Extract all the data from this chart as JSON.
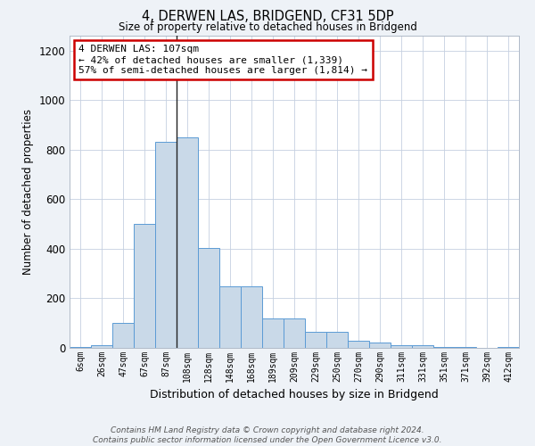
{
  "title": "4, DERWEN LAS, BRIDGEND, CF31 5DP",
  "subtitle": "Size of property relative to detached houses in Bridgend",
  "xlabel": "Distribution of detached houses by size in Bridgend",
  "ylabel": "Number of detached properties",
  "bin_labels": [
    "6sqm",
    "26sqm",
    "47sqm",
    "67sqm",
    "87sqm",
    "108sqm",
    "128sqm",
    "148sqm",
    "168sqm",
    "189sqm",
    "209sqm",
    "229sqm",
    "250sqm",
    "270sqm",
    "290sqm",
    "311sqm",
    "331sqm",
    "351sqm",
    "371sqm",
    "392sqm",
    "412sqm"
  ],
  "bar_values": [
    5,
    10,
    100,
    500,
    830,
    850,
    405,
    250,
    250,
    120,
    120,
    65,
    65,
    30,
    20,
    10,
    10,
    5,
    5,
    0,
    5
  ],
  "bar_color": "#c9d9e8",
  "bar_edge_color": "#5b9bd5",
  "ylim": [
    0,
    1260
  ],
  "annotation_text": "4 DERWEN LAS: 107sqm\n← 42% of detached houses are smaller (1,339)\n57% of semi-detached houses are larger (1,814) →",
  "annotation_box_color": "#ffffff",
  "annotation_box_edge_color": "#cc0000",
  "footer": "Contains HM Land Registry data © Crown copyright and database right 2024.\nContains public sector information licensed under the Open Government Licence v3.0.",
  "background_color": "#eef2f7",
  "plot_background_color": "#ffffff",
  "grid_color": "#c5d0e0",
  "property_line_index": 5
}
